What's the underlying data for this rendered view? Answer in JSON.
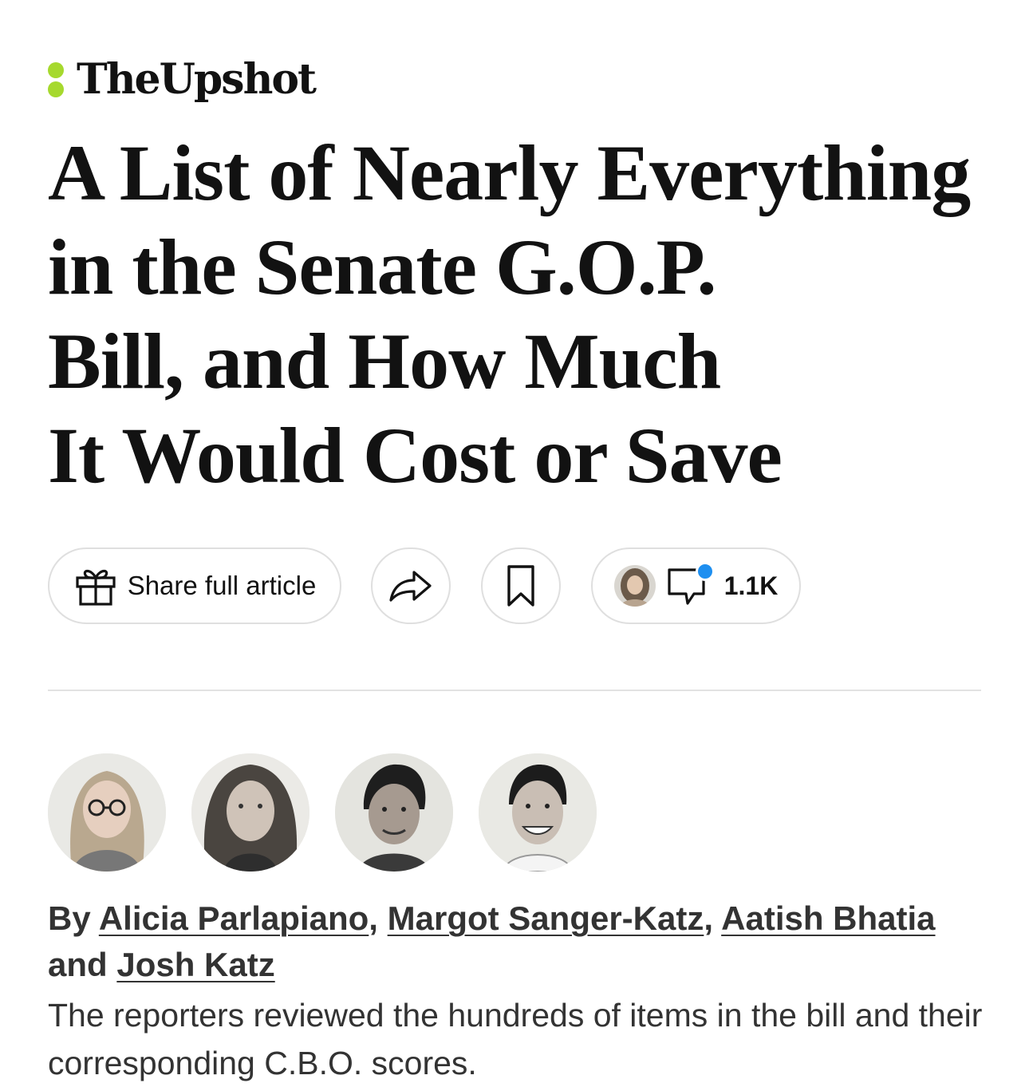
{
  "section": {
    "brand": "TheUpshot"
  },
  "headline": {
    "lines": [
      "A List of Nearly Everything",
      "in the Senate G.O.P.",
      "Bill, and How Much",
      "It Would Cost or Save"
    ]
  },
  "toolbar": {
    "share_label": "Share full article",
    "comment_count": "1.1K"
  },
  "byline": {
    "prefix": "By",
    "authors": [
      "Alicia Parlapiano",
      "Margot Sanger-Katz",
      "Aatish Bhatia",
      "Josh Katz"
    ],
    "sep1": ",",
    "sep2": ",",
    "sep3": ",",
    "conj": "and"
  },
  "summary": "The reporters reviewed the hundreds of items in the bill and their corresponding C.B.O. scores.",
  "colors": {
    "accent_dots": "#a6d92e",
    "notification": "#1e8ff0"
  },
  "icons": [
    "gift-icon",
    "forward-arrow-icon",
    "bookmark-icon",
    "comment-bubble-icon"
  ]
}
